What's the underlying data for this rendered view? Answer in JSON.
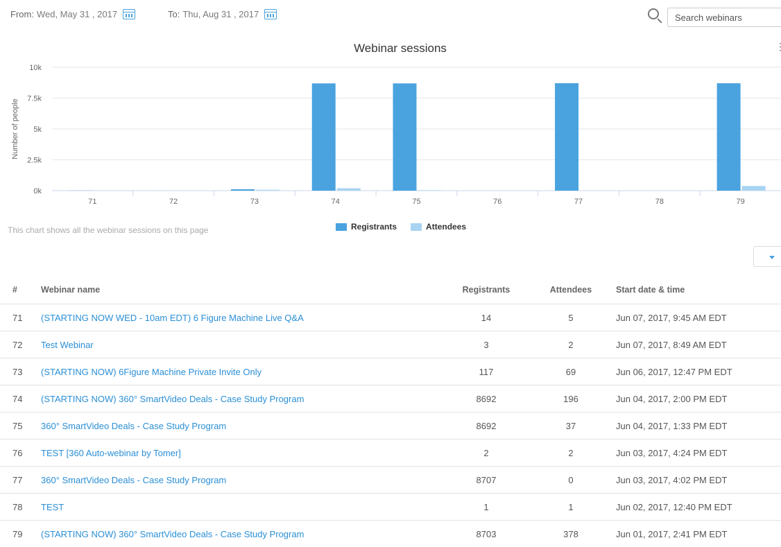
{
  "filters": {
    "from_label": "From:",
    "from_value": "Wed, May 31 , 2017",
    "to_label": "To:",
    "to_value": "Thu, Aug 31 , 2017",
    "search_placeholder": "Search webinars"
  },
  "chart_note": "This chart shows all the webinar sessions on this page",
  "colors": {
    "registrants": "#4aa3df",
    "attendees": "#a8d4f2",
    "link": "#2a8fd6"
  },
  "chart_data": {
    "type": "bar",
    "title": "Webinar sessions",
    "ylabel": "Number of people",
    "xlabel": "",
    "categories": [
      "71",
      "72",
      "73",
      "74",
      "75",
      "76",
      "77",
      "78",
      "79"
    ],
    "ylim": [
      0,
      10000
    ],
    "yticks": [
      0,
      2500,
      5000,
      7500,
      10000
    ],
    "ytick_labels": [
      "0k",
      "2.5k",
      "5k",
      "7.5k",
      "10k"
    ],
    "grid": true,
    "legend": "bottom-center",
    "series": [
      {
        "name": "Registrants",
        "values": [
          14,
          3,
          117,
          8692,
          8692,
          2,
          8707,
          1,
          8703
        ]
      },
      {
        "name": "Attendees",
        "values": [
          5,
          2,
          69,
          196,
          37,
          2,
          0,
          1,
          378
        ]
      }
    ]
  },
  "table": {
    "headers": {
      "num": "#",
      "name": "Webinar name",
      "registrants": "Registrants",
      "attendees": "Attendees",
      "start": "Start date & time"
    },
    "rows": [
      {
        "num": "71",
        "name": "(STARTING NOW WED - 10am EDT) 6 Figure Machine Live Q&A",
        "registrants": "14",
        "attendees": "5",
        "start": "Jun 07, 2017, 9:45 AM EDT"
      },
      {
        "num": "72",
        "name": "Test Webinar",
        "registrants": "3",
        "attendees": "2",
        "start": "Jun 07, 2017, 8:49 AM EDT"
      },
      {
        "num": "73",
        "name": "(STARTING NOW) 6Figure Machine Private Invite Only",
        "registrants": "117",
        "attendees": "69",
        "start": "Jun 06, 2017, 12:47 PM EDT"
      },
      {
        "num": "74",
        "name": "(STARTING NOW) 360° SmartVideo Deals - Case Study Program",
        "registrants": "8692",
        "attendees": "196",
        "start": "Jun 04, 2017, 2:00 PM EDT"
      },
      {
        "num": "75",
        "name": "360° SmartVideo Deals - Case Study Program",
        "registrants": "8692",
        "attendees": "37",
        "start": "Jun 04, 2017, 1:33 PM EDT"
      },
      {
        "num": "76",
        "name": "TEST [360 Auto-webinar by Tomer]",
        "registrants": "2",
        "attendees": "2",
        "start": "Jun 03, 2017, 4:24 PM EDT"
      },
      {
        "num": "77",
        "name": "360° SmartVideo Deals - Case Study Program",
        "registrants": "8707",
        "attendees": "0",
        "start": "Jun 03, 2017, 4:02 PM EDT"
      },
      {
        "num": "78",
        "name": "TEST",
        "registrants": "1",
        "attendees": "1",
        "start": "Jun 02, 2017, 12:40 PM EDT"
      },
      {
        "num": "79",
        "name": "(STARTING NOW) 360° SmartVideo Deals - Case Study Program",
        "registrants": "8703",
        "attendees": "378",
        "start": "Jun 01, 2017, 2:41 PM EDT"
      }
    ]
  }
}
